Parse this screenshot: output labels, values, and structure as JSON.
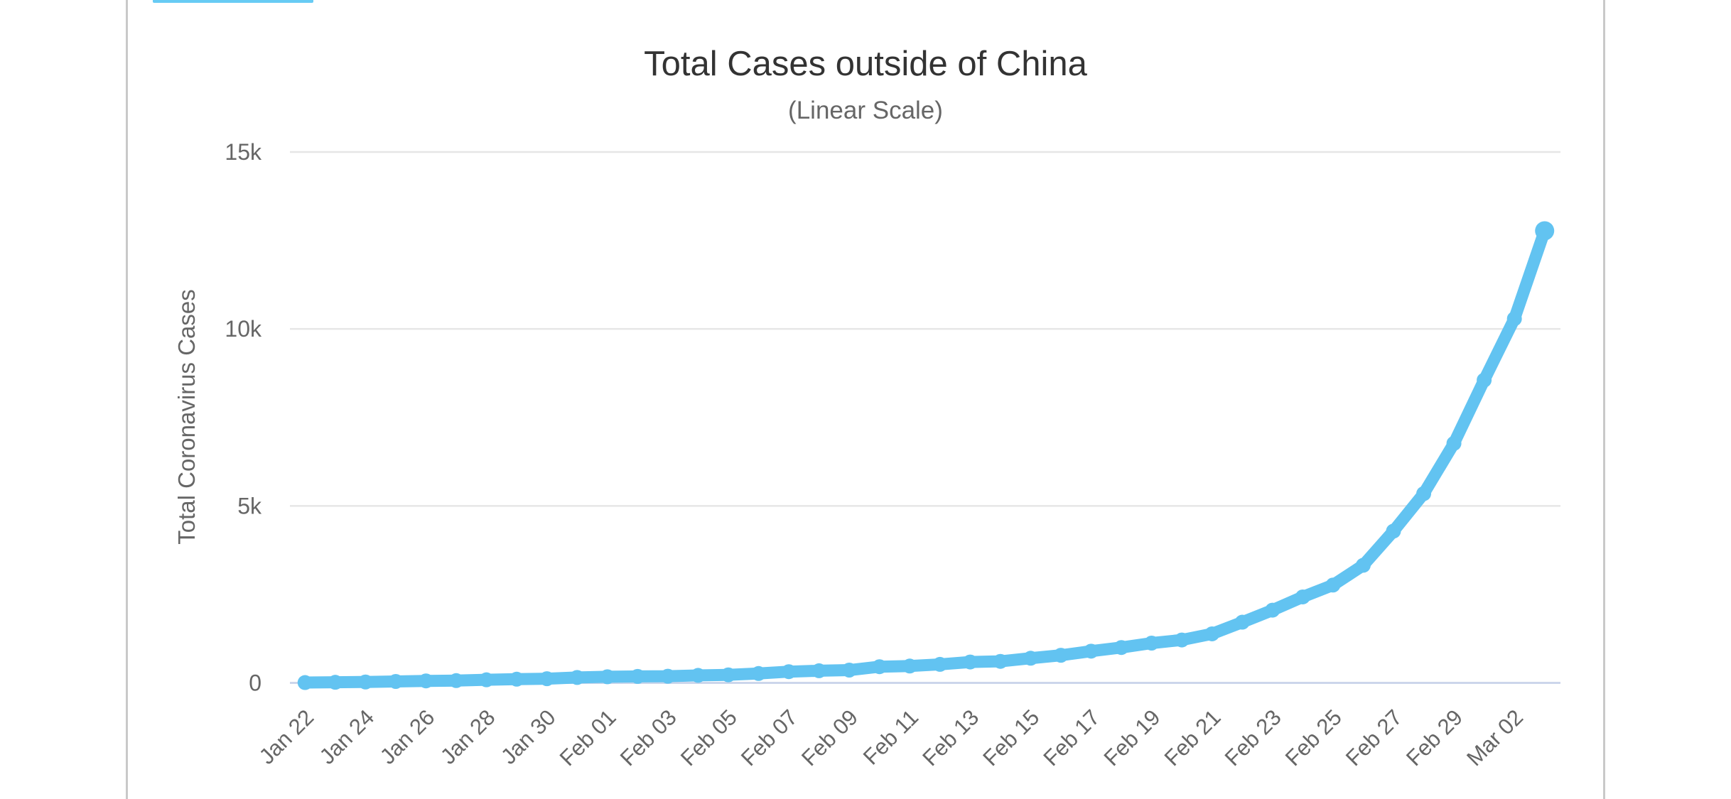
{
  "page": {
    "background_color": "#ffffff",
    "border_color": "#c9c9c9",
    "active_tab_indicator_color": "#67cbf4"
  },
  "chart_data": {
    "type": "line",
    "title": "Total Cases outside of China",
    "subtitle": "(Linear Scale)",
    "ylabel": "Total Coronavirus Cases",
    "xlabel": "",
    "ylim": [
      0,
      15000
    ],
    "grid": true,
    "legend": false,
    "line_color": "#62c3f1",
    "grid_color": "#e6e6e6",
    "axis_line_color": "#ccd6eb",
    "label_color": "#666666",
    "title_color": "#333333",
    "ytick_labels": [
      "0",
      "5k",
      "10k",
      "15k"
    ],
    "ytick_values": [
      0,
      5000,
      10000,
      15000
    ],
    "xtick_labels": [
      "Jan 22",
      "Jan 24",
      "Jan 26",
      "Jan 28",
      "Jan 30",
      "Feb 01",
      "Feb 03",
      "Feb 05",
      "Feb 07",
      "Feb 09",
      "Feb 11",
      "Feb 13",
      "Feb 15",
      "Feb 17",
      "Feb 19",
      "Feb 21",
      "Feb 23",
      "Feb 25",
      "Feb 27",
      "Feb 29",
      "Mar 02"
    ],
    "xtick_every_n_points": 2,
    "x": [
      "Jan 22",
      "Jan 23",
      "Jan 24",
      "Jan 25",
      "Jan 26",
      "Jan 27",
      "Jan 28",
      "Jan 29",
      "Jan 30",
      "Jan 31",
      "Feb 01",
      "Feb 02",
      "Feb 03",
      "Feb 04",
      "Feb 05",
      "Feb 06",
      "Feb 07",
      "Feb 08",
      "Feb 09",
      "Feb 10",
      "Feb 11",
      "Feb 12",
      "Feb 13",
      "Feb 14",
      "Feb 15",
      "Feb 16",
      "Feb 17",
      "Feb 18",
      "Feb 19",
      "Feb 20",
      "Feb 21",
      "Feb 22",
      "Feb 23",
      "Feb 24",
      "Feb 25",
      "Feb 26",
      "Feb 27",
      "Feb 28",
      "Feb 29",
      "Mar 01",
      "Mar 02",
      "Mar 03"
    ],
    "series": [
      {
        "name": "Total Cases outside of China",
        "values": [
          9,
          17,
          25,
          40,
          56,
          64,
          87,
          105,
          118,
          153,
          173,
          183,
          188,
          212,
          227,
          265,
          317,
          343,
          361,
          457,
          476,
          523,
          590,
          608,
          697,
          780,
          896,
          999,
          1124,
          1212,
          1385,
          1715,
          2055,
          2429,
          2764,
          3323,
          4288,
          5346,
          6767,
          8555,
          10288,
          12773
        ]
      }
    ]
  }
}
